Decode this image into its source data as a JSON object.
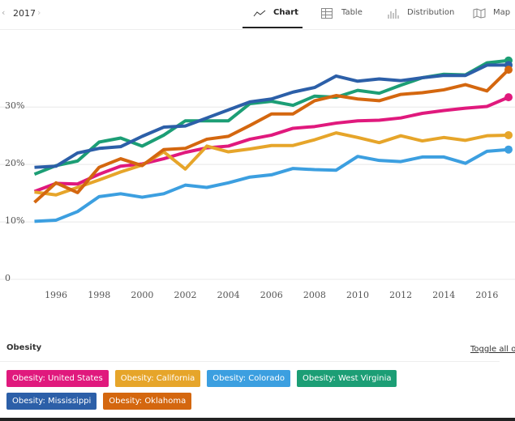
{
  "ui": {
    "year": "2017",
    "tabs": [
      "Chart",
      "Table",
      "Distribution",
      "Map"
    ],
    "legend_title": "Obesity",
    "toggle": "Toggle all off"
  },
  "chart_data": {
    "type": "line",
    "x": [
      1995,
      1996,
      1997,
      1998,
      1999,
      2000,
      2001,
      2002,
      2003,
      2004,
      2005,
      2006,
      2007,
      2008,
      2009,
      2010,
      2011,
      2012,
      2013,
      2014,
      2015,
      2016,
      2017
    ],
    "xlim": [
      1995,
      2017
    ],
    "xticks": [
      1996,
      1998,
      2000,
      2002,
      2004,
      2006,
      2008,
      2010,
      2012,
      2014,
      2016
    ],
    "ylim": [
      0,
      43
    ],
    "yticks": [
      0,
      {
        "value": 10,
        "label": "10%"
      },
      {
        "value": 20,
        "label": "20%"
      },
      {
        "value": 30,
        "label": "30%"
      }
    ],
    "grid": true,
    "series": [
      {
        "name": "Obesity: United States",
        "color": "#e0197d",
        "values": [
          15.3,
          16.7,
          16.6,
          18.3,
          19.7,
          20.1,
          21.0,
          22.1,
          22.9,
          23.2,
          24.4,
          25.1,
          26.3,
          26.6,
          27.2,
          27.6,
          27.7,
          28.1,
          28.9,
          29.4,
          29.8,
          30.1,
          31.7
        ]
      },
      {
        "name": "Obesity: California",
        "color": "#e6a52a",
        "values": [
          15.2,
          14.7,
          16.0,
          17.3,
          18.7,
          19.9,
          22.2,
          19.2,
          23.2,
          22.2,
          22.7,
          23.3,
          23.3,
          24.3,
          25.5,
          24.7,
          23.8,
          25.0,
          24.1,
          24.7,
          24.2,
          25.0,
          25.1
        ]
      },
      {
        "name": "Obesity: Colorado",
        "color": "#3c9fe0",
        "values": [
          10.1,
          10.3,
          11.8,
          14.4,
          14.9,
          14.3,
          14.9,
          16.4,
          16.0,
          16.8,
          17.8,
          18.2,
          19.3,
          19.1,
          19.0,
          21.4,
          20.7,
          20.5,
          21.3,
          21.3,
          20.2,
          22.3,
          22.6
        ]
      },
      {
        "name": "Obesity: West Virginia",
        "color": "#1c9e75",
        "values": [
          18.3,
          19.8,
          20.6,
          23.9,
          24.6,
          23.2,
          25.1,
          27.6,
          27.6,
          27.6,
          30.6,
          31.0,
          30.3,
          31.9,
          31.7,
          32.9,
          32.4,
          33.8,
          35.1,
          35.7,
          35.6,
          37.7,
          38.1
        ]
      },
      {
        "name": "Obesity: Mississippi",
        "color": "#2c5fa8",
        "values": [
          19.5,
          19.7,
          22.0,
          22.8,
          23.1,
          24.9,
          26.5,
          26.7,
          28.1,
          29.5,
          30.9,
          31.4,
          32.6,
          33.4,
          35.4,
          34.5,
          34.9,
          34.6,
          35.1,
          35.5,
          35.5,
          37.3,
          37.3
        ]
      },
      {
        "name": "Obesity: Oklahoma",
        "color": "#d4670f",
        "values": [
          13.4,
          16.8,
          15.1,
          19.5,
          21.0,
          19.8,
          22.6,
          22.8,
          24.4,
          24.9,
          26.8,
          28.8,
          28.8,
          31.1,
          32.0,
          31.4,
          31.1,
          32.2,
          32.5,
          33.0,
          33.9,
          32.8,
          36.5
        ]
      }
    ]
  }
}
